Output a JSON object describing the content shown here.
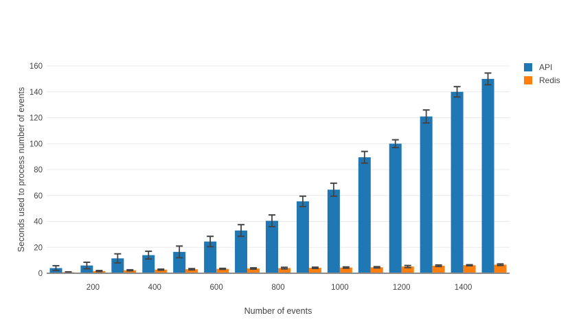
{
  "chart_data": {
    "type": "bar",
    "title": "",
    "xlabel": "Number of events",
    "ylabel": "Seconds used to process number of events",
    "categories": [
      100,
      200,
      300,
      400,
      500,
      600,
      700,
      800,
      900,
      1000,
      1100,
      1200,
      1300,
      1400,
      1500
    ],
    "x_tick_values": [
      200,
      400,
      600,
      800,
      1000,
      1200,
      1400
    ],
    "yticks": [
      0,
      20,
      40,
      60,
      80,
      100,
      120,
      140,
      160
    ],
    "ylim": [
      0,
      160
    ],
    "grid": true,
    "legend_position": "top-right",
    "error_bar_color": "#444444",
    "series": [
      {
        "name": "API",
        "color": "#1f77b4",
        "values": [
          4,
          6,
          11.5,
          14,
          16.5,
          24.5,
          33,
          40.5,
          55.5,
          64.5,
          89.5,
          100,
          121,
          140,
          150
        ],
        "error": [
          1.8,
          2.5,
          3.5,
          3,
          4.5,
          4,
          4.5,
          4.5,
          4,
          5,
          4.5,
          3,
          5,
          4,
          4.5
        ]
      },
      {
        "name": "Redis",
        "color": "#ff7f0e",
        "values": [
          0.8,
          1.7,
          2.3,
          2.8,
          3.1,
          3.4,
          3.7,
          4,
          4.2,
          4.4,
          4.6,
          5.2,
          5.8,
          6.2,
          6.6
        ],
        "error": [
          0.3,
          0.4,
          0.4,
          0.4,
          0.5,
          0.4,
          0.5,
          0.6,
          0.5,
          0.5,
          0.5,
          0.8,
          0.6,
          0.4,
          0.6
        ]
      }
    ]
  }
}
